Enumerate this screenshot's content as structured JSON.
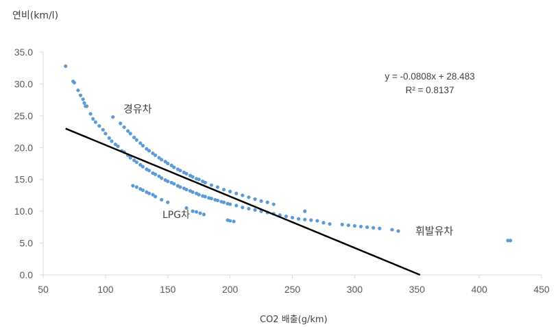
{
  "chart_data": {
    "type": "scatter",
    "title": "",
    "ylabel": "연비(km/l)",
    "xlabel": "CO2 배출(g/km)",
    "xlim": [
      50,
      450
    ],
    "ylim": [
      0,
      35
    ],
    "xticks": [
      "50",
      "100",
      "150",
      "200",
      "250",
      "300",
      "350",
      "400",
      "450"
    ],
    "yticks": [
      "0.0",
      "5.0",
      "10.0",
      "15.0",
      "20.0",
      "25.0",
      "30.0",
      "35.0"
    ],
    "grid": false,
    "legend": "none",
    "point_color": "#5b9bd5",
    "trendline_color": "#000000",
    "annotations": {
      "diesel": "경유차",
      "lpg": "LPG차",
      "gasoline": "휘발유차"
    },
    "trendline": {
      "equation": "y = -0.0808x + 28.483",
      "r2": "R² = 0.8137",
      "slope": -0.0808,
      "intercept": 28.483,
      "x_range": [
        68,
        352.5
      ]
    },
    "points": [
      [
        68,
        32.8
      ],
      [
        74,
        30.4
      ],
      [
        75,
        30.2
      ],
      [
        78,
        29.0
      ],
      [
        80,
        28.2
      ],
      [
        82,
        27.6
      ],
      [
        83,
        27.0
      ],
      [
        84,
        26.5
      ],
      [
        85,
        26.5
      ],
      [
        88,
        25.3
      ],
      [
        90,
        24.5
      ],
      [
        92,
        24.0
      ],
      [
        95,
        23.4
      ],
      [
        98,
        22.8
      ],
      [
        100,
        22.2
      ],
      [
        103,
        21.5
      ],
      [
        105,
        21.0
      ],
      [
        108,
        20.5
      ],
      [
        110,
        20.2
      ],
      [
        113,
        19.5
      ],
      [
        115,
        19.3
      ],
      [
        118,
        18.8
      ],
      [
        120,
        18.4
      ],
      [
        123,
        18.0
      ],
      [
        125,
        17.7
      ],
      [
        128,
        17.3
      ],
      [
        130,
        17.0
      ],
      [
        133,
        16.6
      ],
      [
        135,
        16.4
      ],
      [
        138,
        16.0
      ],
      [
        140,
        15.8
      ],
      [
        143,
        15.5
      ],
      [
        145,
        15.2
      ],
      [
        148,
        14.9
      ],
      [
        150,
        14.7
      ],
      [
        153,
        14.5
      ],
      [
        155,
        14.3
      ],
      [
        158,
        14.0
      ],
      [
        160,
        13.8
      ],
      [
        163,
        13.6
      ],
      [
        165,
        13.4
      ],
      [
        168,
        13.2
      ],
      [
        170,
        13.0
      ],
      [
        173,
        12.8
      ],
      [
        175,
        12.6
      ],
      [
        178,
        12.4
      ],
      [
        180,
        12.3
      ],
      [
        183,
        12.1
      ],
      [
        185,
        12.0
      ],
      [
        188,
        11.8
      ],
      [
        190,
        11.7
      ],
      [
        193,
        11.5
      ],
      [
        195,
        11.4
      ],
      [
        198,
        11.2
      ],
      [
        200,
        11.1
      ],
      [
        205,
        10.9
      ],
      [
        210,
        10.6
      ],
      [
        215,
        10.4
      ],
      [
        220,
        10.2
      ],
      [
        225,
        10.0
      ],
      [
        230,
        9.8
      ],
      [
        235,
        9.6
      ],
      [
        240,
        9.4
      ],
      [
        245,
        9.2
      ],
      [
        250,
        9.0
      ],
      [
        255,
        8.8
      ],
      [
        260,
        8.7
      ],
      [
        265,
        8.6
      ],
      [
        270,
        8.5
      ],
      [
        275,
        8.2
      ],
      [
        280,
        8.0
      ],
      [
        290,
        7.9
      ],
      [
        295,
        7.8
      ],
      [
        300,
        7.7
      ],
      [
        305,
        7.6
      ],
      [
        310,
        7.5
      ],
      [
        315,
        7.4
      ],
      [
        320,
        7.3
      ],
      [
        330,
        7.1
      ],
      [
        335,
        6.9
      ],
      [
        423,
        5.4
      ],
      [
        425,
        5.4
      ],
      [
        106,
        24.8
      ],
      [
        112,
        23.8
      ],
      [
        115,
        23.2
      ],
      [
        118,
        22.6
      ],
      [
        120,
        22.2
      ],
      [
        123,
        21.6
      ],
      [
        125,
        21.2
      ],
      [
        128,
        20.7
      ],
      [
        130,
        20.3
      ],
      [
        133,
        19.8
      ],
      [
        135,
        19.5
      ],
      [
        138,
        19.1
      ],
      [
        140,
        18.8
      ],
      [
        143,
        18.4
      ],
      [
        145,
        18.1
      ],
      [
        148,
        17.8
      ],
      [
        150,
        17.5
      ],
      [
        153,
        17.2
      ],
      [
        155,
        16.9
      ],
      [
        158,
        16.6
      ],
      [
        160,
        16.4
      ],
      [
        163,
        16.1
      ],
      [
        165,
        15.9
      ],
      [
        168,
        15.6
      ],
      [
        170,
        15.4
      ],
      [
        173,
        15.1
      ],
      [
        175,
        15.0
      ],
      [
        178,
        14.7
      ],
      [
        180,
        14.5
      ],
      [
        185,
        14.1
      ],
      [
        190,
        13.8
      ],
      [
        195,
        13.4
      ],
      [
        200,
        13.1
      ],
      [
        205,
        12.8
      ],
      [
        210,
        12.5
      ],
      [
        215,
        12.2
      ],
      [
        220,
        11.9
      ],
      [
        225,
        11.6
      ],
      [
        230,
        11.4
      ],
      [
        235,
        11.1
      ],
      [
        260,
        10.0
      ],
      [
        122,
        14.0
      ],
      [
        125,
        13.8
      ],
      [
        128,
        13.5
      ],
      [
        130,
        13.3
      ],
      [
        133,
        13.0
      ],
      [
        135,
        12.8
      ],
      [
        138,
        12.6
      ],
      [
        140,
        12.3
      ],
      [
        145,
        11.8
      ],
      [
        150,
        11.4
      ],
      [
        165,
        10.5
      ],
      [
        170,
        10.0
      ],
      [
        173,
        9.9
      ],
      [
        176,
        9.7
      ],
      [
        179,
        9.5
      ],
      [
        198,
        8.6
      ],
      [
        200,
        8.5
      ],
      [
        203,
        8.4
      ]
    ]
  }
}
